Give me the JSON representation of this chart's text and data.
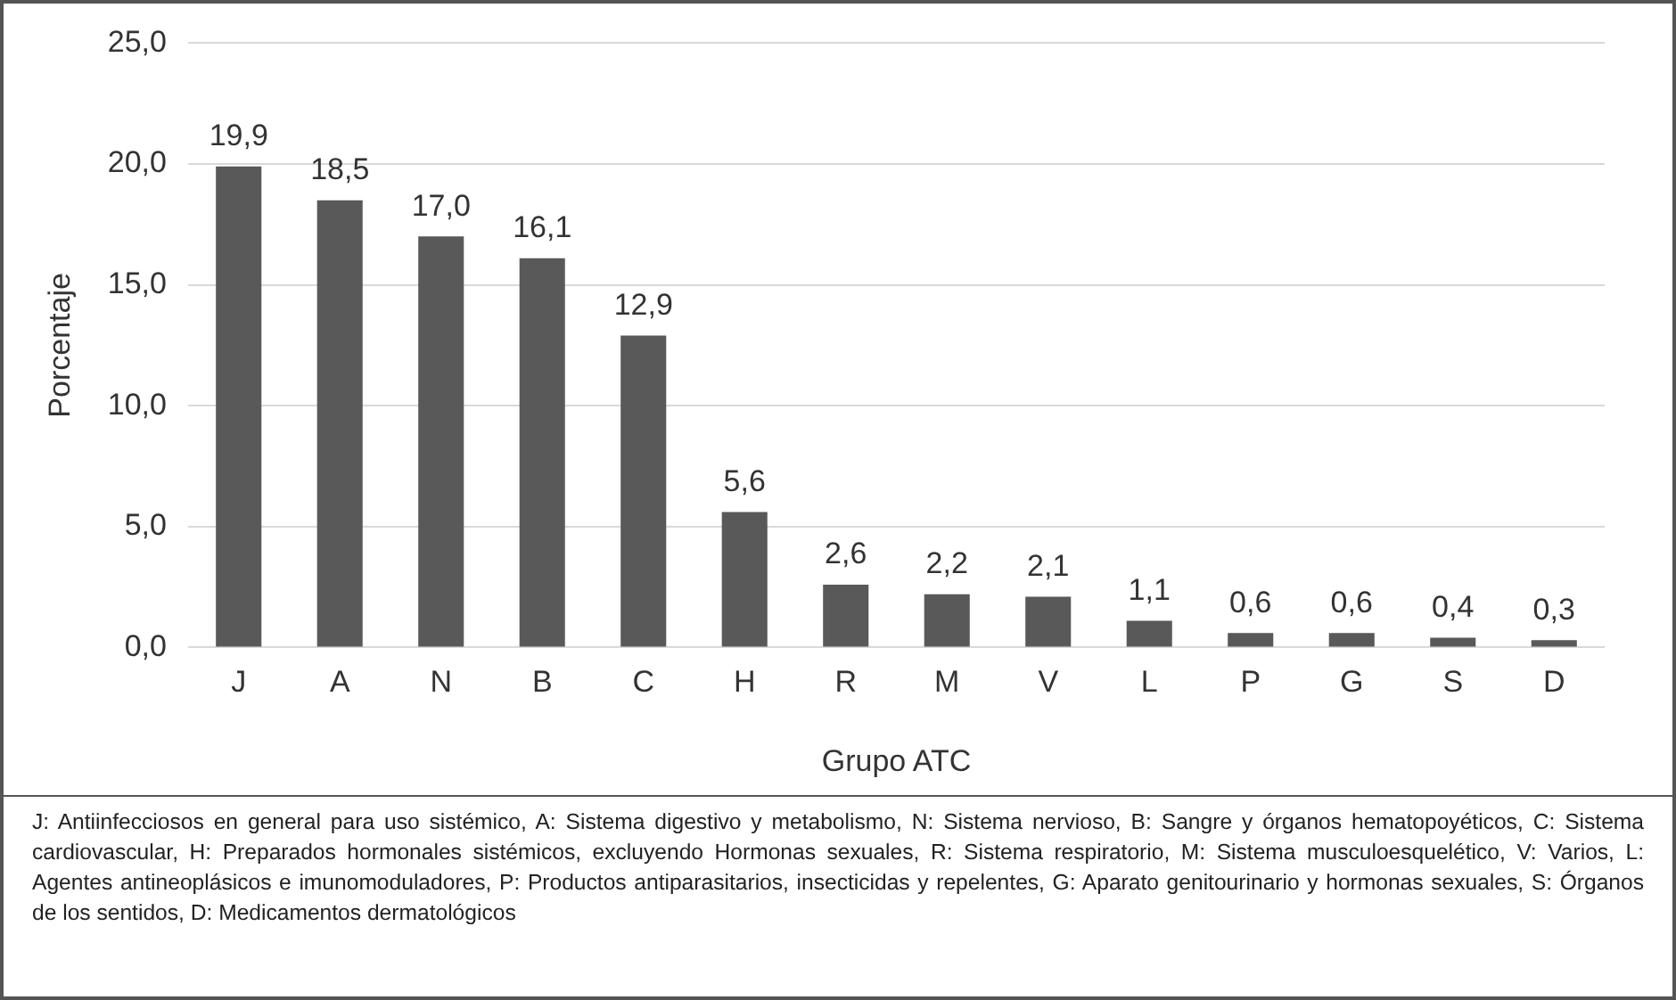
{
  "chart_data": {
    "type": "bar",
    "xlabel": "Grupo ATC",
    "ylabel": "Porcentaje",
    "categories": [
      "J",
      "A",
      "N",
      "B",
      "C",
      "H",
      "R",
      "M",
      "V",
      "L",
      "P",
      "G",
      "S",
      "D"
    ],
    "values": [
      19.9,
      18.5,
      17.0,
      16.1,
      12.9,
      5.6,
      2.6,
      2.2,
      2.1,
      1.1,
      0.6,
      0.6,
      0.4,
      0.3
    ],
    "value_labels": [
      "19,9",
      "18,5",
      "17,0",
      "16,1",
      "12,9",
      "5,6",
      "2,6",
      "2,2",
      "2,1",
      "1,1",
      "0,6",
      "0,6",
      "0,4",
      "0,3"
    ],
    "color": "#595959",
    "ylim": [
      0,
      25
    ],
    "yticks": [
      {
        "value": 0,
        "label": "0,0"
      },
      {
        "value": 5,
        "label": "5,0"
      },
      {
        "value": 10,
        "label": "10,0"
      },
      {
        "value": 15,
        "label": "15,0"
      },
      {
        "value": 20,
        "label": "20,0"
      },
      {
        "value": 25,
        "label": "25,0"
      }
    ],
    "grid": "y",
    "annotations": [
      "J: Antiinfecciosos en general para uso sistémico, A: Sistema digestivo y metabolismo, N: Sistema nervioso, B: Sangre y órganos hematopoyéticos, C: Sistema cardiovascular, H: Preparados hormonales sistémicos, excluyendo Hormonas sexuales, R: Sistema respiratorio, M: Sistema musculoesquelético, V: Varios, L: Agentes antineoplásicos e imunomoduladores, P: Productos antiparasitarios, insecticidas y repelentes, G: Aparato genitourinario y hormonas sexuales, S: Órganos de los sentidos, D: Medicamentos dermatológicos"
    ]
  }
}
